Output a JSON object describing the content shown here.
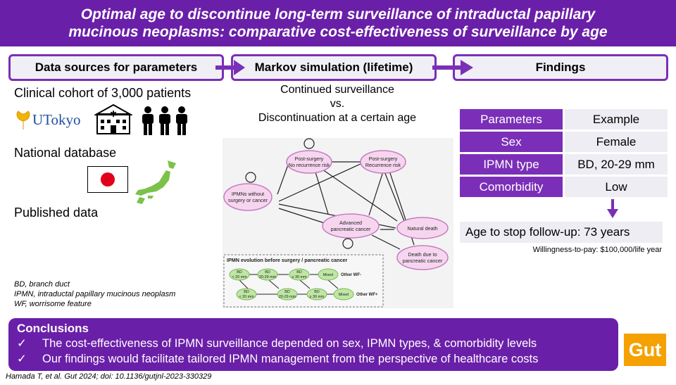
{
  "header": {
    "title_line1": "Optimal age to discontinue long-term surveillance of intraductal papillary",
    "title_line2": "mucinous neoplasms: comparative cost-effectiveness of surveillance by age"
  },
  "sections": {
    "data_sources": "Data sources for parameters",
    "markov": "Markov simulation (lifetime)",
    "findings": "Findings"
  },
  "data_sources": {
    "cohort": "Clinical cohort of 3,000 patients",
    "logo_text": "UTokyo",
    "national_db": "National database",
    "published": "Published data"
  },
  "markov": {
    "line1": "Continued surveillance",
    "line2": "vs.",
    "line3": "Discontinuation at a certain age",
    "states": {
      "post_no_rec_1": "Post-surgery",
      "post_no_rec_2": "No recurrence risk",
      "post_rec_1": "Post-surgery",
      "post_rec_2": "Recurrence risk",
      "ipmn_1": "IPMNs without",
      "ipmn_2": "surgery or cancer",
      "adv_1": "Advanced",
      "adv_2": "pancreatic cancer",
      "natural": "Natural death",
      "death_1": "Death due to",
      "death_2": "pancreatic cancer"
    },
    "evolution": {
      "title": "IPMN evolution before surgery / pancreatic cancer",
      "row1": [
        "BD",
        "< 20 mm",
        "BD",
        "20-29 mm",
        "BD",
        "≥ 30 mm",
        "Mixed"
      ],
      "row1_label": "Other WF-",
      "row2": [
        "BD",
        "< 20 mm",
        "BD",
        "20-29 mm",
        "BD",
        "≥ 30 mm",
        "Mixed"
      ],
      "row2_label": "Other WF+"
    }
  },
  "params_table": {
    "header": [
      "Parameters",
      "Example"
    ],
    "rows": [
      [
        "Sex",
        "Female"
      ],
      [
        "IPMN type",
        "BD, 20-29 mm"
      ],
      [
        "Comorbidity",
        "Low"
      ]
    ]
  },
  "finding": "Age to stop follow-up: 73 years",
  "wtp": "Willingness-to-pay: $100,000/life  year",
  "abbreviations": {
    "bd": "BD, branch duct",
    "ipmn": "IPMN, intraductal papillary  mucinous neoplasm",
    "wf": "WF, worrisome  feature"
  },
  "conclusions": {
    "title": "Conclusions",
    "check": "✓",
    "items": [
      "The cost-effectiveness of IPMN surveillance depended on sex, IPMN types, & comorbidity levels",
      "Our findings would facilitate tailored IPMN management from the perspective of healthcare costs"
    ]
  },
  "journal_logo": "Gut",
  "citation": "Hamada T, et al. Gut 2024; doi: 10.1136/gutjnl-2023-330329",
  "colors": {
    "purple": "#6a1fa8",
    "light": "#eeedf3",
    "gut_orange": "#f5a100",
    "node_pink": "#f6d6ef",
    "node_border": "#c77bc1",
    "evo_green": "#bfe6a4"
  }
}
